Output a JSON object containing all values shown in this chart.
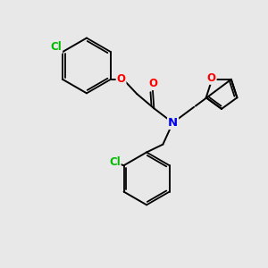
{
  "background_color": "#e8e8e8",
  "bond_color": "#000000",
  "atom_colors": {
    "Cl": "#00bb00",
    "O": "#ff0000",
    "N": "#0000ee",
    "C": "#000000"
  },
  "figsize": [
    3.0,
    3.0
  ],
  "dpi": 100
}
